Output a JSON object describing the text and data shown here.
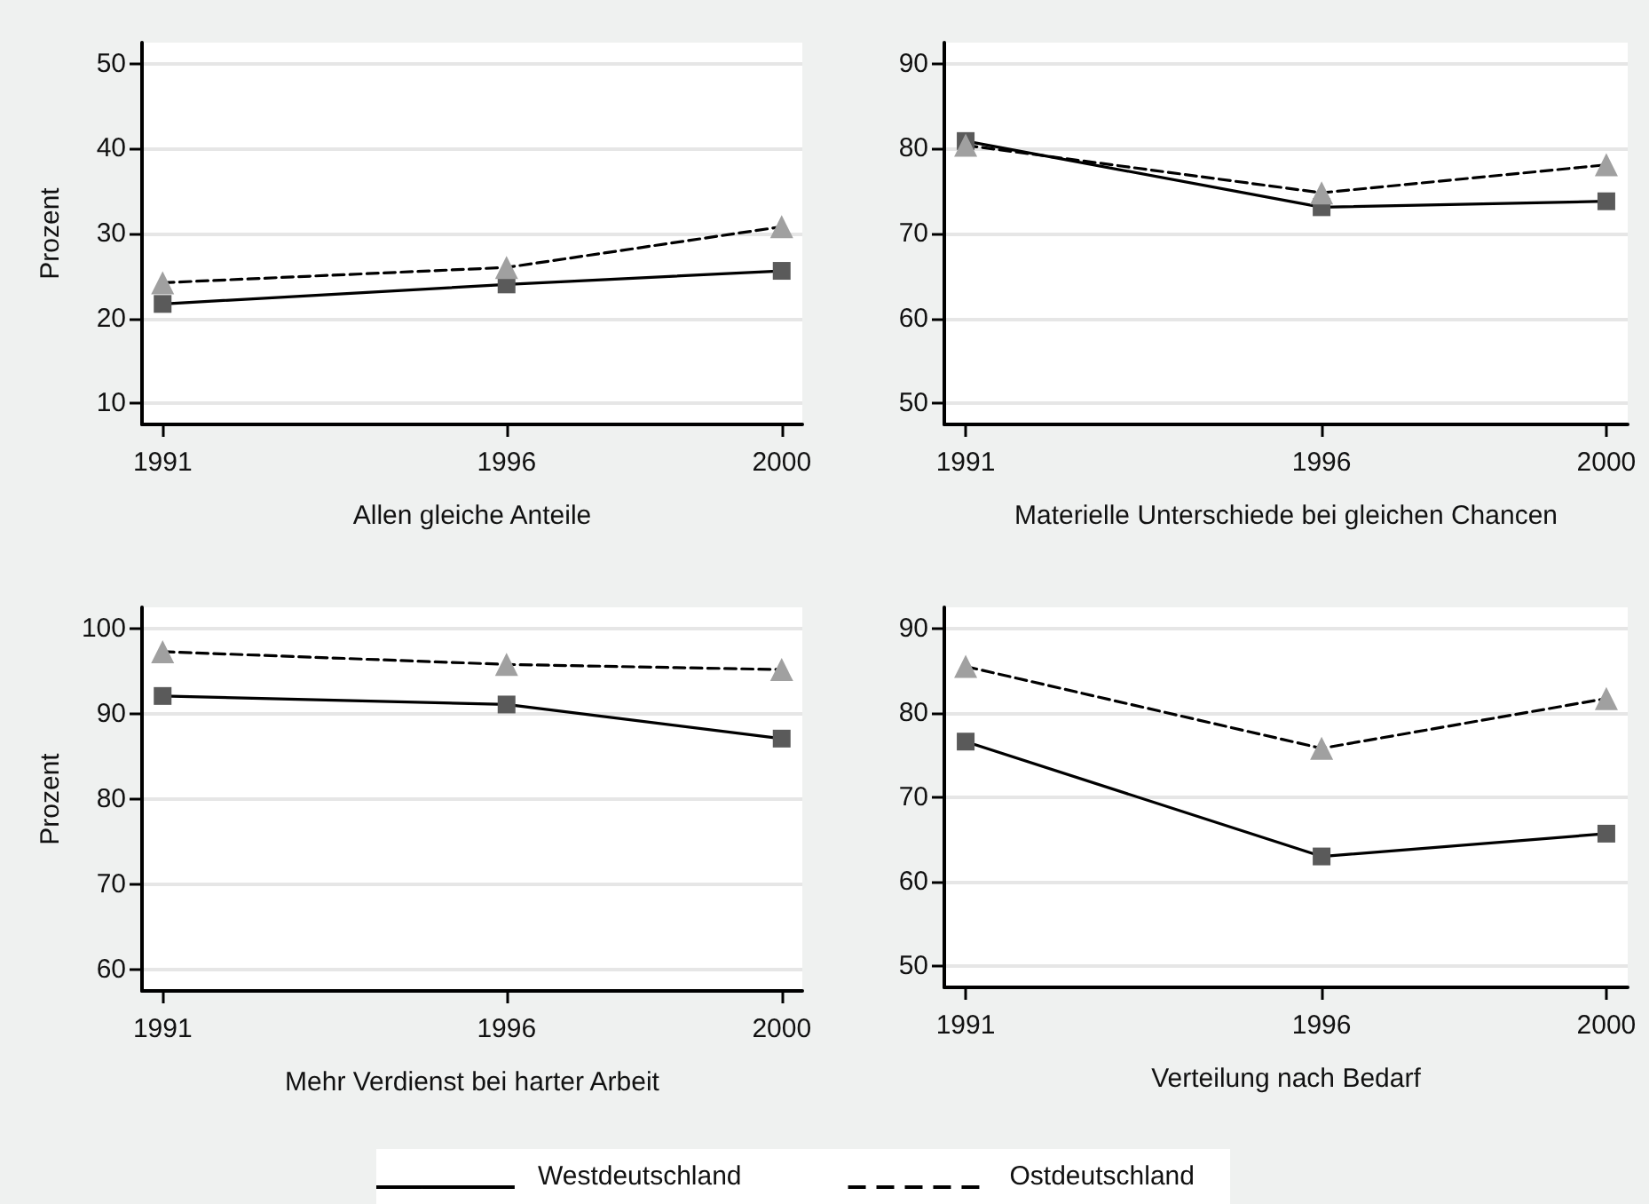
{
  "chart_data": [
    {
      "type": "line",
      "xlabel": "Allen gleiche Anteile",
      "ylabel": "Prozent",
      "x": [
        1991,
        1996,
        2000
      ],
      "xlim": [
        1990.7,
        2000.3
      ],
      "xticks": [
        1991,
        1996,
        2000
      ],
      "ylim": [
        7.5,
        52.5
      ],
      "yticks": [
        10,
        20,
        30,
        40,
        50
      ],
      "grid": "y",
      "series": [
        {
          "color": "#000000",
          "marker": "square",
          "line_style": "solid",
          "values": [
            21.7,
            24,
            25.6
          ]
        },
        {
          "color": "#000000",
          "marker": "triangle",
          "line_style": "dashed",
          "values": [
            24.2,
            26,
            30.8
          ]
        }
      ]
    },
    {
      "type": "line",
      "xlabel": "Materielle Unterschiede bei gleichen Chancen",
      "x": [
        1991,
        1996,
        2000
      ],
      "xlim": [
        1990.7,
        2000.3
      ],
      "xticks": [
        1991,
        1996,
        2000
      ],
      "ylim": [
        47.5,
        92.5
      ],
      "yticks": [
        50,
        60,
        70,
        80,
        90
      ],
      "grid": "y",
      "series": [
        {
          "color": "#000000",
          "marker": "square",
          "line_style": "solid",
          "values": [
            80.9,
            73.1,
            73.8
          ]
        },
        {
          "color": "#000000",
          "marker": "triangle",
          "line_style": "dashed",
          "values": [
            80.4,
            74.8,
            78.1
          ]
        }
      ]
    },
    {
      "type": "line",
      "xlabel": "Mehr Verdienst bei harter Arbeit",
      "ylabel": "Prozent",
      "x": [
        1991,
        1996,
        2000
      ],
      "xlim": [
        1990.7,
        2000.3
      ],
      "xticks": [
        1991,
        1996,
        2000
      ],
      "ylim": [
        57.5,
        102.5
      ],
      "yticks": [
        60,
        70,
        80,
        90,
        100
      ],
      "grid": "y",
      "legend": "bottom",
      "series": [
        {
          "name": "Westdeutschland",
          "color": "#000000",
          "marker": "square",
          "line_style": "solid",
          "values": [
            92.1,
            91.1,
            87.1
          ]
        },
        {
          "name": "Ostdeutschland",
          "color": "#000000",
          "marker": "triangle",
          "line_style": "dashed",
          "values": [
            97.3,
            95.8,
            95.2
          ]
        }
      ]
    },
    {
      "type": "line",
      "xlabel": "Verteilung nach Bedarf",
      "x": [
        1991,
        1996,
        2000
      ],
      "xlim": [
        1990.7,
        2000.3
      ],
      "xticks": [
        1991,
        1996,
        2000
      ],
      "ylim": [
        47.5,
        92.5
      ],
      "yticks": [
        50,
        60,
        70,
        80,
        90
      ],
      "grid": "y",
      "series": [
        {
          "color": "#000000",
          "marker": "square",
          "line_style": "solid",
          "values": [
            76.6,
            63.0,
            65.7
          ]
        },
        {
          "color": "#000000",
          "marker": "triangle",
          "line_style": "dashed",
          "values": [
            85.5,
            75.8,
            81.7
          ]
        }
      ]
    }
  ]
}
